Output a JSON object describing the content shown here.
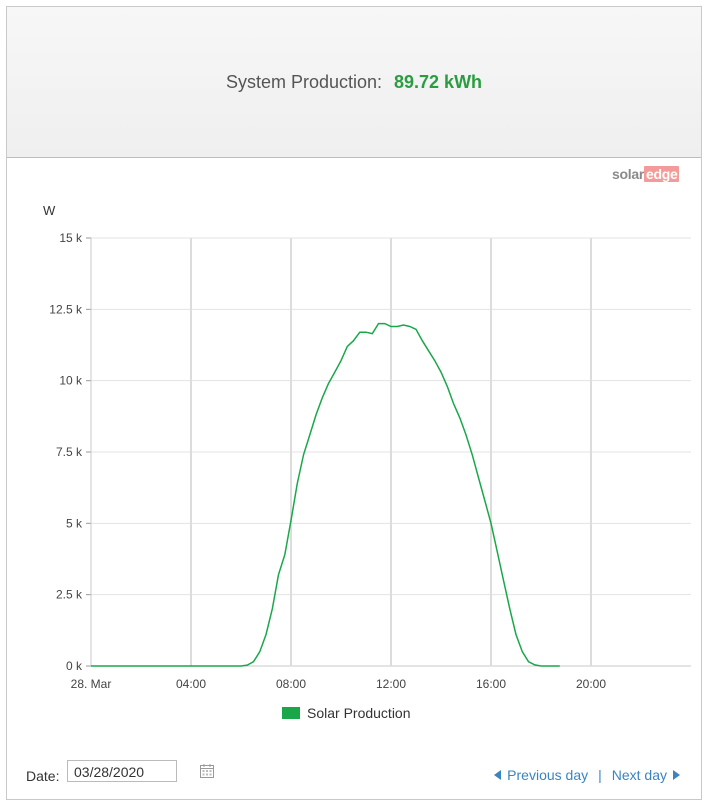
{
  "header": {
    "label": "System Production:",
    "value": "89.72 kWh"
  },
  "logo": {
    "solar": "solar",
    "edge": "edge"
  },
  "footer": {
    "date_label": "Date:",
    "date_value": "03/28/2020",
    "prev_label": "Previous day",
    "separator": "|",
    "next_label": "Next day"
  },
  "colors": {
    "series": "#1aa74a",
    "value": "#2a9d40",
    "link": "#3a84c4"
  },
  "icons": [
    "calendar-icon",
    "triangle-left-icon",
    "triangle-right-icon"
  ],
  "chart_data": {
    "type": "line",
    "ylabel": "W",
    "xlim": [
      0,
      24
    ],
    "ylim": [
      0,
      15000
    ],
    "yticks": [
      0,
      2500,
      5000,
      7500,
      10000,
      12500,
      15000
    ],
    "ytick_labels": [
      "0 k",
      "2.5 k",
      "5 k",
      "7.5 k",
      "10 k",
      "12.5 k",
      "15 k"
    ],
    "xticks": [
      0,
      4,
      8,
      12,
      16,
      20
    ],
    "xtick_labels": [
      "28. Mar",
      "04:00",
      "08:00",
      "12:00",
      "16:00",
      "20:00"
    ],
    "grid": true,
    "legend_position": "bottom",
    "series": [
      {
        "name": "Solar Production",
        "x": [
          0,
          6,
          6.25,
          6.5,
          6.75,
          7,
          7.25,
          7.5,
          7.75,
          8,
          8.25,
          8.5,
          8.75,
          9,
          9.25,
          9.5,
          9.75,
          10,
          10.25,
          10.5,
          10.75,
          11,
          11.25,
          11.5,
          11.75,
          12,
          12.25,
          12.5,
          12.75,
          13,
          13.25,
          13.5,
          13.75,
          14,
          14.25,
          14.5,
          14.75,
          15,
          15.25,
          15.5,
          15.75,
          16,
          16.25,
          16.5,
          16.75,
          17,
          17.25,
          17.5,
          17.75,
          18,
          18.25,
          18.5,
          18.75
        ],
        "y": [
          0,
          0,
          30,
          150,
          500,
          1100,
          2000,
          3200,
          3900,
          5100,
          6400,
          7400,
          8100,
          8800,
          9400,
          9900,
          10300,
          10700,
          11200,
          11400,
          11700,
          11700,
          11650,
          12000,
          12000,
          11900,
          11900,
          11950,
          11900,
          11800,
          11400,
          11050,
          10700,
          10300,
          9800,
          9200,
          8700,
          8100,
          7400,
          6600,
          5800,
          5000,
          4000,
          3000,
          2000,
          1100,
          500,
          150,
          40,
          0,
          0,
          0,
          0
        ]
      }
    ]
  }
}
